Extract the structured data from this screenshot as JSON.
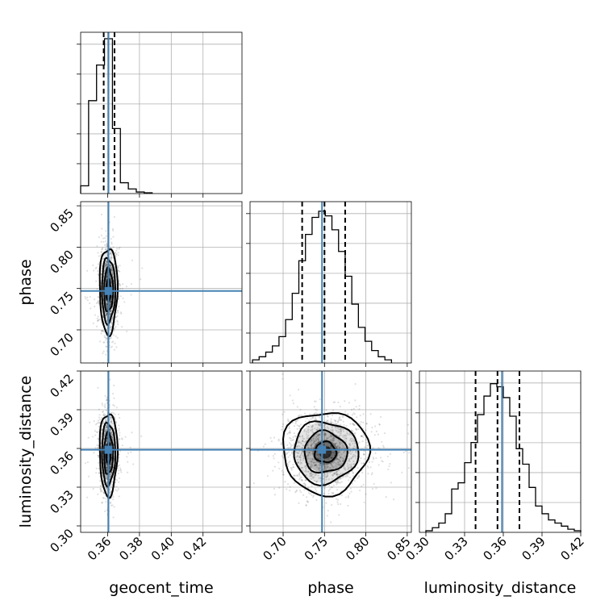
{
  "chart_data": {
    "type": "corner",
    "parameters": [
      "geocent_time",
      "phase",
      "luminosity_distance"
    ],
    "axis_labels": {
      "x": [
        "geocent_time",
        "phase",
        "luminosity_distance"
      ],
      "y": [
        "phase",
        "luminosity_distance"
      ]
    },
    "ranges": {
      "geocent_time": [
        0.343,
        0.4445
      ],
      "phase": [
        0.66,
        0.855
      ],
      "luminosity_distance": [
        0.295,
        0.42
      ]
    },
    "ticks": {
      "geocent_time": [
        "0.36",
        "0.38",
        "0.40",
        "0.42"
      ],
      "phase": [
        "0.70",
        "0.75",
        "0.80",
        "0.85"
      ],
      "luminosity_distance": [
        "0.30",
        "0.33",
        "0.36",
        "0.39",
        "0.42"
      ]
    },
    "truths": {
      "geocent_time": 0.3605,
      "phase": 0.747,
      "luminosity_distance": 0.359
    },
    "quantiles": {
      "geocent_time": [
        0.3575,
        0.3605,
        0.3643
      ],
      "phase": [
        0.723,
        0.75,
        0.775
      ],
      "luminosity_distance": [
        0.3385,
        0.3555,
        0.3725
      ]
    },
    "histograms": {
      "geocent_time": {
        "bin_edges": [
          0.343,
          0.348,
          0.353,
          0.358,
          0.363,
          0.368,
          0.373,
          0.378,
          0.383,
          0.388
        ],
        "counts": [
          0.05,
          0.6,
          0.83,
          1.0,
          0.42,
          0.07,
          0.03,
          0.01,
          0.005
        ]
      },
      "phase": {
        "bin_edges": [
          0.663,
          0.671,
          0.679,
          0.687,
          0.695,
          0.703,
          0.711,
          0.719,
          0.727,
          0.735,
          0.743,
          0.751,
          0.759,
          0.767,
          0.775,
          0.783,
          0.791,
          0.799,
          0.807,
          0.815,
          0.823,
          0.831
        ],
        "counts": [
          0.02,
          0.04,
          0.07,
          0.11,
          0.17,
          0.28,
          0.45,
          0.66,
          0.83,
          0.94,
          0.98,
          0.95,
          0.86,
          0.72,
          0.56,
          0.38,
          0.23,
          0.14,
          0.08,
          0.04,
          0.02
        ]
      },
      "luminosity_distance": {
        "bin_edges": [
          0.3,
          0.305,
          0.31,
          0.315,
          0.32,
          0.325,
          0.33,
          0.335,
          0.34,
          0.345,
          0.35,
          0.355,
          0.36,
          0.365,
          0.37,
          0.375,
          0.38,
          0.385,
          0.39,
          0.395,
          0.4,
          0.405,
          0.41,
          0.415,
          0.42
        ],
        "counts": [
          0.01,
          0.03,
          0.06,
          0.12,
          0.28,
          0.32,
          0.45,
          0.58,
          0.76,
          0.88,
          0.96,
          0.94,
          0.87,
          0.75,
          0.54,
          0.44,
          0.29,
          0.17,
          0.12,
          0.08,
          0.06,
          0.04,
          0.02,
          0.01
        ]
      }
    },
    "posterior_2d": {
      "phase_vs_geocent_time": {
        "x_center": 0.3605,
        "y_center": 0.748,
        "x_sigma": 0.0028,
        "y_sigma": 0.026,
        "contour_levels_sigma": [
          0.5,
          1.0,
          1.5,
          2.0
        ]
      },
      "luminosity_distance_vs_geocent_time": {
        "x_center": 0.3605,
        "y_center": 0.356,
        "x_sigma": 0.0028,
        "y_sigma": 0.016,
        "contour_levels_sigma": [
          0.5,
          1.0,
          1.5,
          2.0
        ]
      },
      "luminosity_distance_vs_phase": {
        "x_center": 0.751,
        "y_center": 0.357,
        "x_sigma": 0.026,
        "y_sigma": 0.016,
        "contour_levels_sigma": [
          0.5,
          1.0,
          1.5,
          2.0
        ]
      }
    },
    "colors": {
      "truth": "#4682b4",
      "histogram": "#000000",
      "quantile": "#000000",
      "contour": "#000000",
      "samples": "#000000",
      "grid": "#b0b0b0"
    },
    "grid": true
  }
}
